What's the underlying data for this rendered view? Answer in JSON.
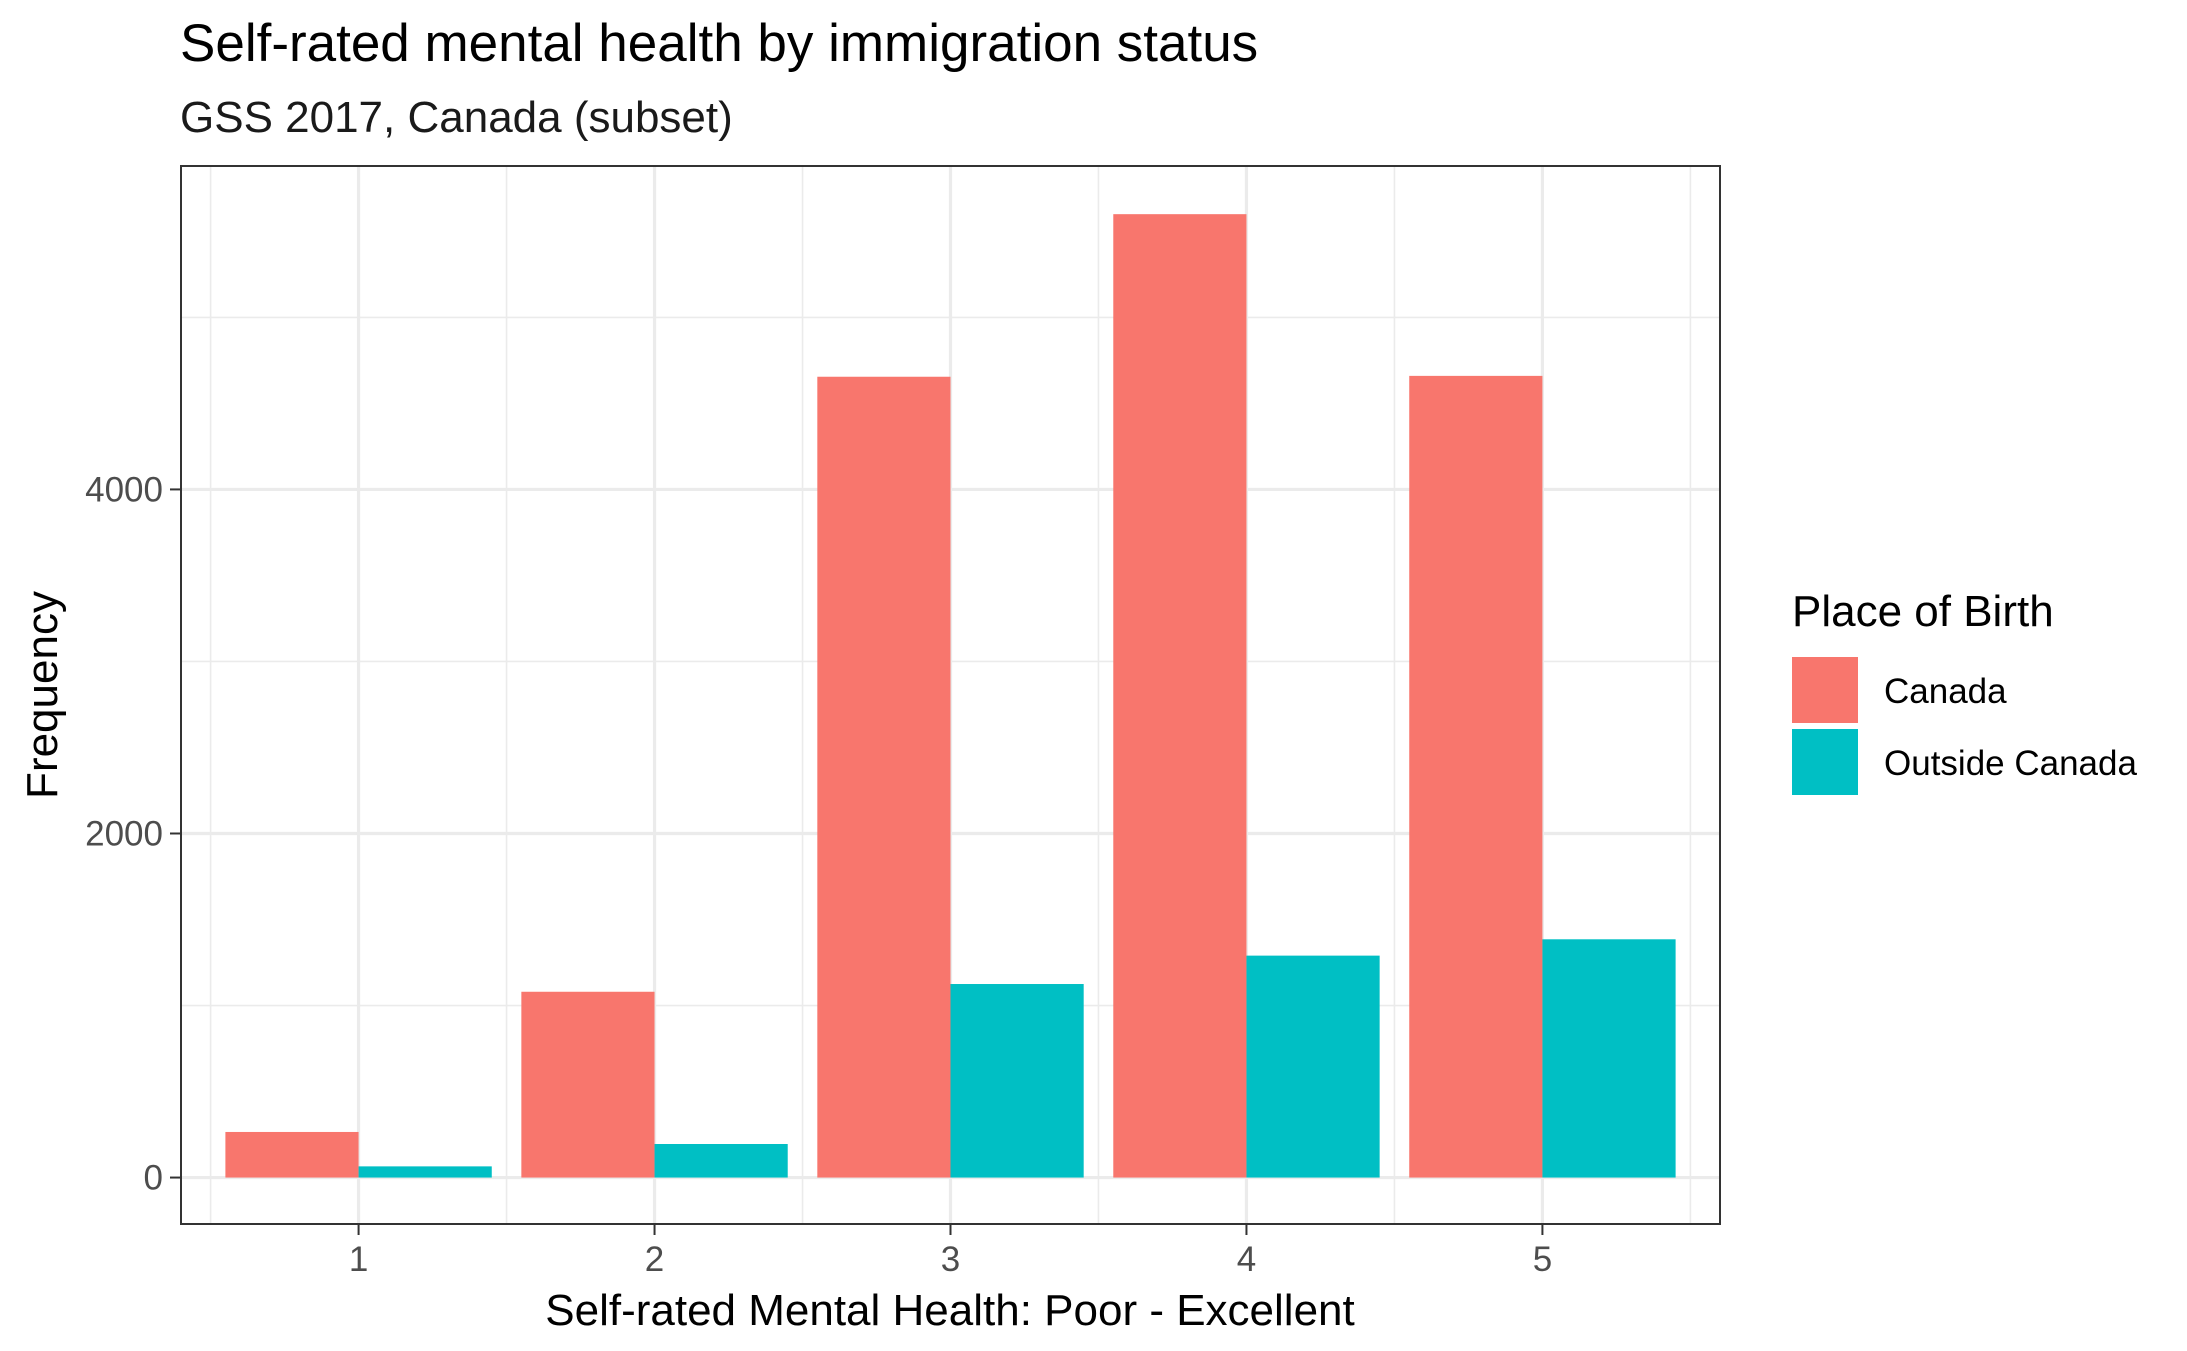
{
  "chart_data": {
    "type": "bar",
    "title": "Self-rated mental health by immigration status",
    "subtitle": "GSS 2017, Canada (subset)",
    "xlabel": "Self-rated Mental Health: Poor - Excellent",
    "ylabel": "Frequency",
    "categories": [
      "1",
      "2",
      "3",
      "4",
      "5"
    ],
    "series": [
      {
        "name": "Canada",
        "color": "#F8766D",
        "values": [
          265,
          1080,
          4655,
          5600,
          4660
        ]
      },
      {
        "name": "Outside Canada",
        "color": "#00BFC4",
        "values": [
          65,
          195,
          1125,
          1290,
          1385
        ]
      }
    ],
    "yticks": [
      0,
      2000,
      4000
    ],
    "ylim": [
      -270,
      5880
    ],
    "legend": {
      "title": "Place of Birth",
      "position": "right"
    },
    "grid": true,
    "theme": "bw"
  }
}
